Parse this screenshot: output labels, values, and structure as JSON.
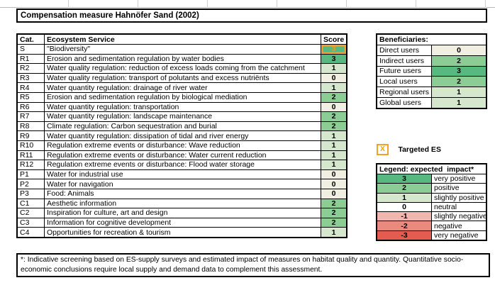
{
  "title": "Compensation measure Hahnöfer Sand (2002)",
  "table": {
    "headers": {
      "cat": "Cat.",
      "service": "Ecosystem Service",
      "score": "Score"
    },
    "rows": [
      {
        "cat": "S",
        "service": "\"Biodiversity\"",
        "score": 3,
        "targeted": true
      },
      {
        "cat": "R1",
        "service": "Erosion and sedimentation regulation by water bodies",
        "score": 3
      },
      {
        "cat": "R2",
        "service": "Water quality regulation: reduction of excess loads coming from the catchment",
        "score": 1
      },
      {
        "cat": "R3",
        "service": "Water quality regulation: transport of polutants and excess nutriënts",
        "score": 0
      },
      {
        "cat": "R4",
        "service": "Water quantity regulation: drainage of river water",
        "score": 1
      },
      {
        "cat": "R5",
        "service": "Erosion and sedimentation regulation by biological mediation",
        "score": 2
      },
      {
        "cat": "R6",
        "service": "Water quantity regulation: transportation",
        "score": 0
      },
      {
        "cat": "R7",
        "service": "Water quantity regulation: landscape maintenance",
        "score": 2
      },
      {
        "cat": "R8",
        "service": "Climate regulation: Carbon sequestration and burial",
        "score": 2
      },
      {
        "cat": "R9",
        "service": "Water quantity regulation: dissipation of tidal and river energy",
        "score": 1
      },
      {
        "cat": "R10",
        "service": "Regulation extreme events or disturbance: Wave reduction",
        "score": 1
      },
      {
        "cat": "R11",
        "service": "Regulation extreme events or disturbance: Water current reduction",
        "score": 1
      },
      {
        "cat": "R12",
        "service": "Regulation extreme events or disturbance: Flood water storage",
        "score": 1
      },
      {
        "cat": "P1",
        "service": "Water for industrial use",
        "score": 0
      },
      {
        "cat": "P2",
        "service": "Water for navigation",
        "score": 0
      },
      {
        "cat": "P3",
        "service": "Food: Animals",
        "score": 0
      },
      {
        "cat": "C1",
        "service": "Aesthetic information",
        "score": 2
      },
      {
        "cat": "C2",
        "service": "Inspiration for culture, art and design",
        "score": 2
      },
      {
        "cat": "C3",
        "service": "Information for cognitive development",
        "score": 2
      },
      {
        "cat": "C4",
        "service": "Opportunities for recreation & tourism",
        "score": 1
      }
    ]
  },
  "beneficiaries": {
    "title": "Beneficiaries:",
    "rows": [
      {
        "label": "Direct users",
        "score": 0
      },
      {
        "label": "Indirect users",
        "score": 2
      },
      {
        "label": "Future users",
        "score": 3
      },
      {
        "label": "Local users",
        "score": 2
      },
      {
        "label": "Regional users",
        "score": 1
      },
      {
        "label": "Global users",
        "score": 1
      }
    ]
  },
  "targeted_es": {
    "symbol": "X",
    "label": "Targeted ES"
  },
  "legend": {
    "title": "Legend: expected  impact*",
    "rows": [
      {
        "value": 3,
        "label": "very positive"
      },
      {
        "value": 2,
        "label": "positive"
      },
      {
        "value": 1,
        "label": "slightly positive"
      },
      {
        "value": 0,
        "label": "neutral"
      },
      {
        "value": -1,
        "label": "slightly negative"
      },
      {
        "value": -2,
        "label": "negative"
      },
      {
        "value": -3,
        "label": "very negative"
      }
    ]
  },
  "footnote": "*: Indicative screening based on ES-supply surveys and estimated impact of measures on habitat quality and quantity. Quantitative socio-economic conclusions require local supply and demand data to complement this assessment.",
  "colors": {
    "score_3": "#57b880",
    "score_2": "#8ccd96",
    "score_1": "#d5e8ce",
    "score_0": "#f1efe1",
    "score_-1": "#f2b6af",
    "score_-2": "#e98a7e",
    "score_-3": "#e45b50",
    "legend_neutral": "#ffffff",
    "targeted_border": "#f2a12c",
    "targeted_text": "#e8a01e"
  }
}
